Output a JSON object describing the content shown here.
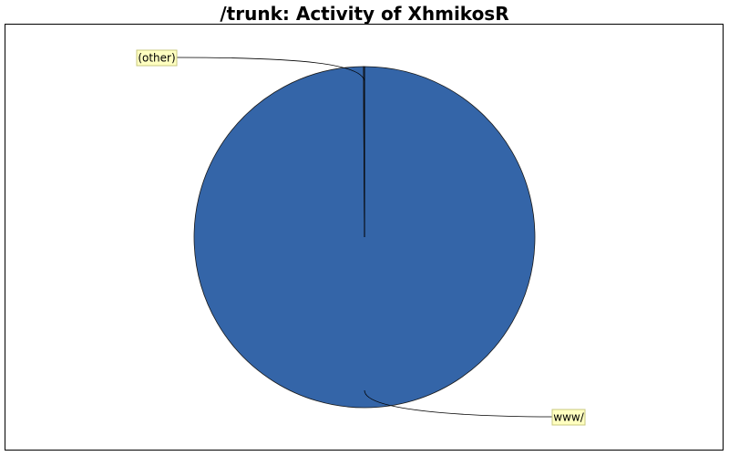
{
  "chart_data": {
    "type": "pie",
    "title": "/trunk: Activity of XhmikosR",
    "slices": [
      {
        "label": "www/",
        "value": 99.9,
        "color": "#3465a8"
      },
      {
        "label": "(other)",
        "value": 0.1,
        "color": "#3465a8"
      }
    ],
    "colors": {
      "slice_fill": "#3465a8",
      "slice_edge": "#1a1a1a",
      "label_box_fill": "#ffffc0",
      "label_box_stroke": "#c8c880",
      "leader_line": "#000000"
    }
  }
}
